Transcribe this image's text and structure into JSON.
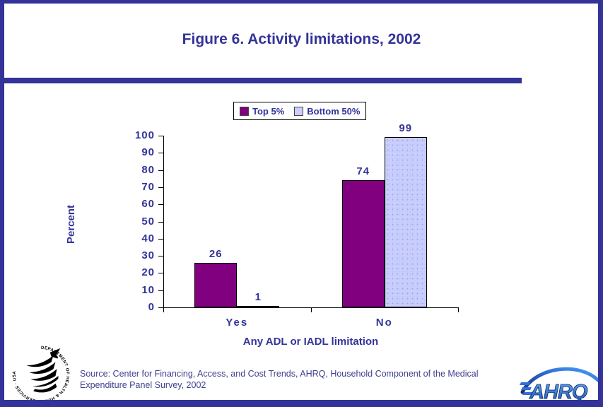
{
  "page": {
    "title": "Figure 6. Activity limitations, 2002",
    "source_line1": "Source: Center for Financing, Access, and Cost Trends, AHRQ, Household Component of the Medical",
    "source_line2": "Expenditure Panel Survey, 2002"
  },
  "colors": {
    "accent_navy": "#333399",
    "top5_purple": "#800080",
    "bottom50_lavender": "#ccccff",
    "axis_black": "#000000"
  },
  "logos": {
    "hhs_text": "DEPARTMENT OF HEALTH & HUMAN SERVICES · USA",
    "ahrq_text": "AHRQ"
  },
  "chart_data": {
    "type": "bar",
    "title": "Figure 6. Activity limitations, 2002",
    "categories": [
      "Yes",
      "No"
    ],
    "series": [
      {
        "name": "Top 5%",
        "values": [
          26,
          74
        ],
        "color": "#800080",
        "speckled": false
      },
      {
        "name": "Bottom 50%",
        "values": [
          1,
          99
        ],
        "color": "#ccccff",
        "speckled": true
      }
    ],
    "xlabel": "Any ADL or IADL limitation",
    "ylabel": "Percent",
    "ylim": [
      0,
      100
    ],
    "ytick_step": 10,
    "grid": false,
    "legend_position": "top"
  }
}
